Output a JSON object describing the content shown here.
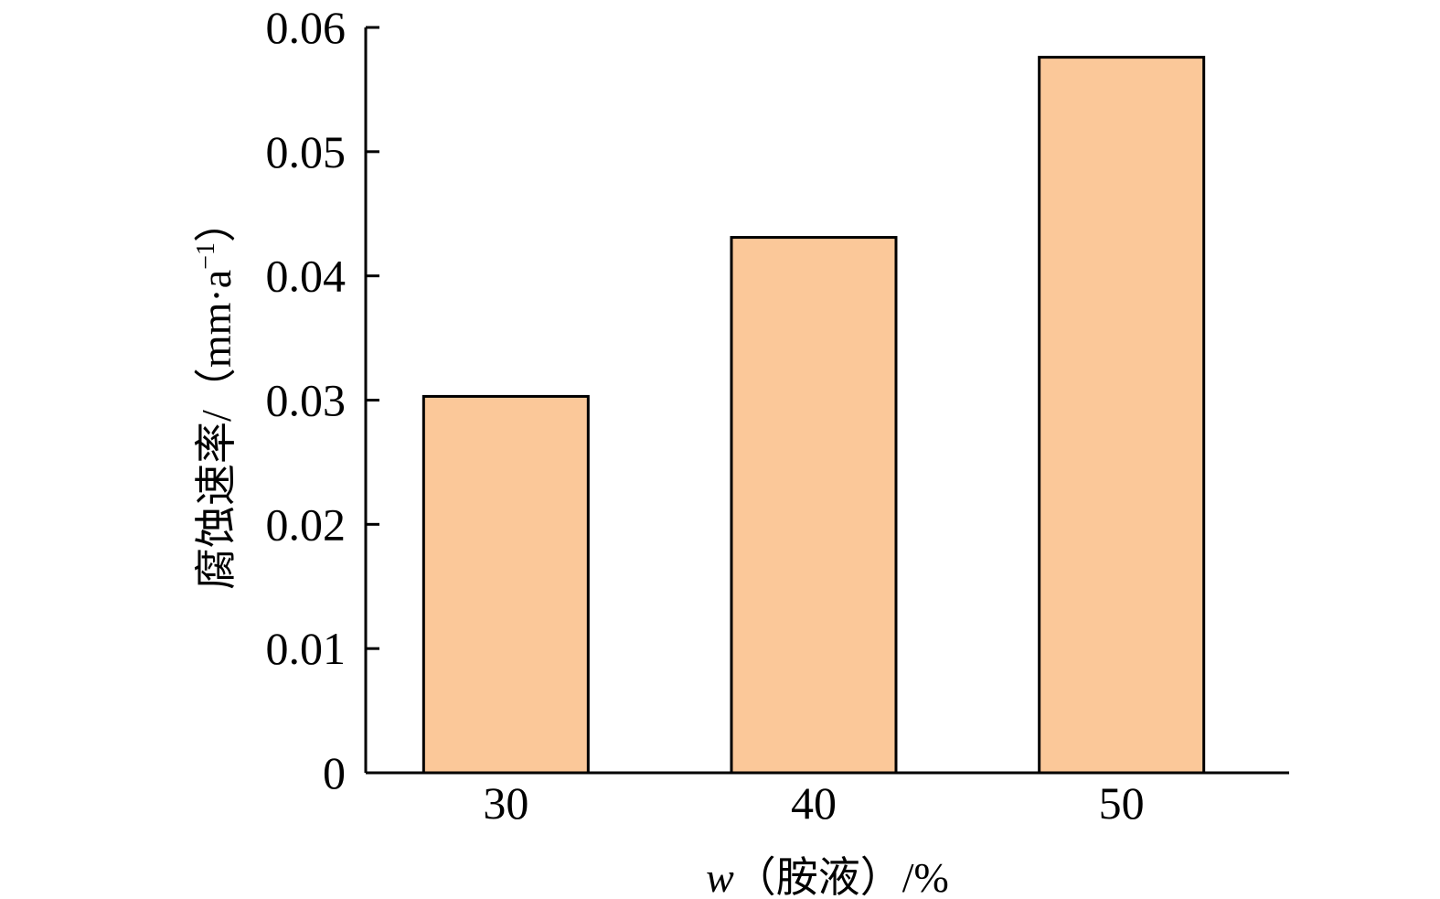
{
  "chart_data": {
    "type": "bar",
    "categories": [
      "30",
      "40",
      "50"
    ],
    "values": [
      0.0303,
      0.0431,
      0.0576
    ],
    "ylim": [
      0,
      0.06
    ],
    "yticks": [
      "0",
      "0.01",
      "0.02",
      "0.03",
      "0.04",
      "0.05",
      "0.06"
    ],
    "ytick_values": [
      0,
      0.01,
      0.02,
      0.03,
      0.04,
      0.05,
      0.06
    ],
    "xlabel": "w（胺液）/%",
    "xlabel_var": "w",
    "xlabel_rest": "（胺液）/%",
    "ylabel": "腐蚀速率/（mm·a",
    "ylabel_sup": "−1",
    "ylabel_close": "）",
    "bar_color": "#FBC899",
    "grid": false,
    "legend": false
  }
}
